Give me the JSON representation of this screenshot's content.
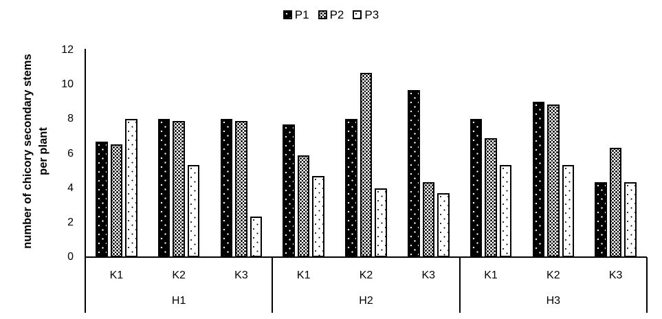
{
  "figure": {
    "background": "#ffffff",
    "axis_color": "#000000"
  },
  "legend": {
    "position": "top-center",
    "items": [
      {
        "label": "P1",
        "marker": "black-square-with-white-dots"
      },
      {
        "label": "P2",
        "marker": "dense-black-speckle-square"
      },
      {
        "label": "P3",
        "marker": "white-square-with-black-dots"
      }
    ]
  },
  "chart_data": {
    "type": "bar",
    "title": "",
    "xlabel": "",
    "ylabel": "number of chicory secondary stems per plant",
    "ylabel_lines": [
      "number of chicory secondary stems",
      "per plant"
    ],
    "ylim": [
      0,
      12
    ],
    "yticks": [
      0,
      2,
      4,
      6,
      8,
      10,
      12
    ],
    "grid": false,
    "legend_position": "top-center",
    "group_labels": [
      "H1",
      "H2",
      "H3"
    ],
    "subgroup_labels": [
      "K1",
      "K2",
      "K3"
    ],
    "categories": [
      "H1-K1",
      "H1-K2",
      "H1-K3",
      "H2-K1",
      "H2-K2",
      "H2-K3",
      "H3-K1",
      "H3-K2",
      "H3-K3"
    ],
    "series": [
      {
        "name": "P1",
        "pattern": "black-with-white-dots",
        "values": [
          6.7,
          8.0,
          8.0,
          7.7,
          8.0,
          9.7,
          8.0,
          9.0,
          4.35
        ]
      },
      {
        "name": "P2",
        "pattern": "dense-black-speckle",
        "values": [
          6.55,
          7.9,
          7.9,
          5.9,
          10.7,
          4.35,
          6.9,
          8.85,
          6.35
        ]
      },
      {
        "name": "P3",
        "pattern": "white-with-black-dots",
        "values": [
          8.0,
          5.35,
          2.35,
          4.7,
          4.0,
          3.7,
          5.35,
          5.35,
          4.35
        ]
      }
    ]
  }
}
